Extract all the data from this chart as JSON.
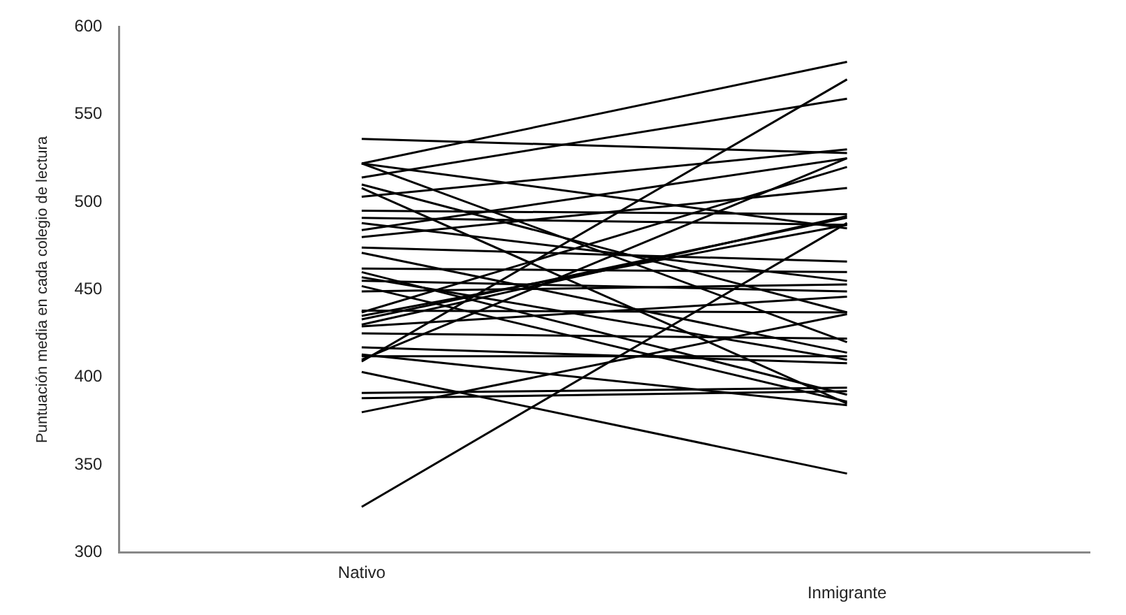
{
  "chart_data": {
    "type": "line",
    "ylabel": "Puntuación media en cada colegio de lectura",
    "categories": [
      "Nativo",
      "Inmigrante"
    ],
    "ylim": [
      300,
      600
    ],
    "yticks": [
      300,
      350,
      400,
      450,
      500,
      550,
      600
    ],
    "grid": false,
    "legend": false,
    "marker": "none",
    "series": [
      {
        "color": "#000000",
        "values": [
          326,
          488
        ]
      },
      {
        "color": "#000000",
        "values": [
          403,
          345
        ]
      },
      {
        "color": "#000000",
        "values": [
          409,
          570
        ]
      },
      {
        "color": "#000000",
        "values": [
          410,
          525
        ]
      },
      {
        "color": "#000000",
        "values": [
          380,
          436
        ]
      },
      {
        "color": "#000000",
        "values": [
          388,
          392
        ]
      },
      {
        "color": "#000000",
        "values": [
          391,
          394
        ]
      },
      {
        "color": "#000000",
        "values": [
          536,
          528
        ]
      },
      {
        "color": "#000000",
        "values": [
          522,
          580
        ]
      },
      {
        "color": "#000000",
        "values": [
          522,
          485
        ]
      },
      {
        "color": "#000000",
        "values": [
          522,
          420
        ]
      },
      {
        "color": "#000000",
        "values": [
          514,
          559
        ]
      },
      {
        "color": "#000000",
        "values": [
          510,
          437
        ]
      },
      {
        "color": "#000000",
        "values": [
          508,
          385
        ]
      },
      {
        "color": "#000000",
        "values": [
          503,
          530
        ]
      },
      {
        "color": "#000000",
        "values": [
          495,
          493
        ]
      },
      {
        "color": "#000000",
        "values": [
          491,
          487
        ]
      },
      {
        "color": "#000000",
        "values": [
          488,
          455
        ]
      },
      {
        "color": "#000000",
        "values": [
          484,
          525
        ]
      },
      {
        "color": "#000000",
        "values": [
          480,
          508
        ]
      },
      {
        "color": "#000000",
        "values": [
          474,
          466
        ]
      },
      {
        "color": "#000000",
        "values": [
          471,
          414
        ]
      },
      {
        "color": "#000000",
        "values": [
          462,
          460
        ]
      },
      {
        "color": "#000000",
        "values": [
          460,
          390
        ]
      },
      {
        "color": "#000000",
        "values": [
          457,
          410
        ]
      },
      {
        "color": "#000000",
        "values": [
          455,
          449
        ]
      },
      {
        "color": "#000000",
        "values": [
          452,
          386
        ]
      },
      {
        "color": "#000000",
        "values": [
          449,
          453
        ]
      },
      {
        "color": "#000000",
        "values": [
          437,
          520
        ]
      },
      {
        "color": "#000000",
        "values": [
          435,
          487
        ]
      },
      {
        "color": "#000000",
        "values": [
          433,
          491
        ]
      },
      {
        "color": "#000000",
        "values": [
          430,
          492
        ]
      },
      {
        "color": "#000000",
        "values": [
          429,
          446
        ]
      },
      {
        "color": "#000000",
        "values": [
          438,
          437
        ]
      },
      {
        "color": "#000000",
        "values": [
          425,
          422
        ]
      },
      {
        "color": "#000000",
        "values": [
          417,
          408
        ]
      },
      {
        "color": "#000000",
        "values": [
          413,
          384
        ]
      },
      {
        "color": "#000000",
        "values": [
          412,
          412
        ]
      }
    ]
  }
}
